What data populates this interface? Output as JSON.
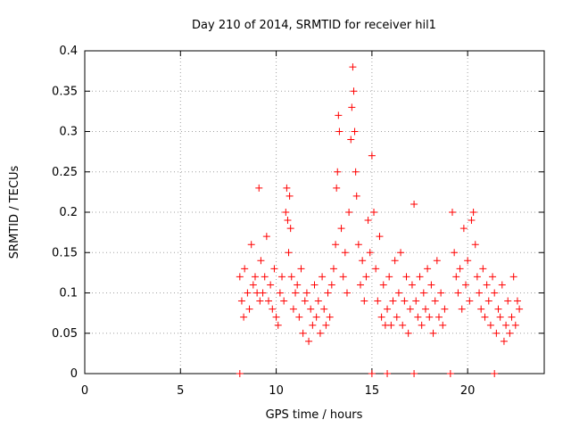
{
  "chart_data": {
    "type": "scatter",
    "title": "Day 210 of 2014, SRMTID for receiver hil1",
    "xlabel": "GPS time / hours",
    "ylabel": "SRMTID / TECUs",
    "xlim": [
      0,
      24
    ],
    "ylim": [
      0,
      0.4
    ],
    "x_ticks": [
      "0",
      "5",
      "10",
      "15",
      "20"
    ],
    "y_ticks": [
      "0",
      "0.05",
      "0.1",
      "0.15",
      "0.2",
      "0.25",
      "0.3",
      "0.35",
      "0.4"
    ],
    "grid": true,
    "marker": "+",
    "color": "#ff0000",
    "zero_points_x": [
      8.1,
      15.0,
      15.8,
      17.2,
      19.1,
      21.4
    ],
    "series": [
      {
        "x": [
          8.1,
          8.2,
          8.3,
          8.35,
          8.5,
          8.6,
          8.7,
          8.8,
          8.9,
          9.0,
          9.1,
          9.15,
          9.2,
          9.3,
          9.4,
          9.5,
          9.6,
          9.7,
          9.8,
          9.9,
          10.0,
          10.1,
          10.2,
          10.3,
          10.4,
          10.5,
          10.55,
          10.6,
          10.65,
          10.7,
          10.75,
          10.8,
          10.9,
          11.0,
          11.1,
          11.2,
          11.3,
          11.4,
          11.5,
          11.6,
          11.7,
          11.8,
          11.9,
          12.0,
          12.1,
          12.2,
          12.3,
          12.4,
          12.5,
          12.6,
          12.7,
          12.8,
          12.9,
          13.0,
          13.1,
          13.15,
          13.2,
          13.25,
          13.3,
          13.4,
          13.5,
          13.6,
          13.7,
          13.8,
          13.9,
          13.95,
          14.0,
          14.05,
          14.1,
          14.15,
          14.2,
          14.3,
          14.4,
          14.5,
          14.6,
          14.7,
          14.8,
          14.9,
          15.0,
          15.1,
          15.2,
          15.3,
          15.4,
          15.5,
          15.6,
          15.7,
          15.8,
          15.9,
          16.0,
          16.1,
          16.2,
          16.3,
          16.4,
          16.5,
          16.6,
          16.7,
          16.8,
          16.9,
          17.0,
          17.1,
          17.2,
          17.3,
          17.4,
          17.5,
          17.6,
          17.7,
          17.8,
          17.9,
          18.0,
          18.1,
          18.2,
          18.3,
          18.4,
          18.5,
          18.6,
          18.7,
          18.8,
          19.2,
          19.3,
          19.4,
          19.5,
          19.6,
          19.7,
          19.8,
          19.9,
          20.0,
          20.1,
          20.2,
          20.3,
          20.4,
          20.5,
          20.6,
          20.7,
          20.8,
          20.9,
          21.0,
          21.1,
          21.2,
          21.3,
          21.4,
          21.5,
          21.6,
          21.7,
          21.8,
          21.9,
          22.0,
          22.1,
          22.2,
          22.3,
          22.4,
          22.5,
          22.6,
          22.7
        ],
        "y": [
          0.12,
          0.09,
          0.07,
          0.13,
          0.1,
          0.08,
          0.16,
          0.11,
          0.12,
          0.1,
          0.23,
          0.09,
          0.14,
          0.1,
          0.12,
          0.17,
          0.09,
          0.11,
          0.08,
          0.13,
          0.07,
          0.06,
          0.1,
          0.12,
          0.09,
          0.2,
          0.23,
          0.19,
          0.15,
          0.22,
          0.18,
          0.12,
          0.08,
          0.1,
          0.11,
          0.07,
          0.13,
          0.05,
          0.09,
          0.1,
          0.04,
          0.08,
          0.06,
          0.11,
          0.07,
          0.09,
          0.05,
          0.12,
          0.08,
          0.06,
          0.1,
          0.07,
          0.11,
          0.13,
          0.16,
          0.23,
          0.25,
          0.32,
          0.3,
          0.18,
          0.12,
          0.15,
          0.1,
          0.2,
          0.29,
          0.33,
          0.38,
          0.35,
          0.3,
          0.25,
          0.22,
          0.16,
          0.11,
          0.14,
          0.09,
          0.12,
          0.19,
          0.15,
          0.27,
          0.2,
          0.13,
          0.09,
          0.17,
          0.07,
          0.11,
          0.06,
          0.08,
          0.12,
          0.06,
          0.09,
          0.14,
          0.07,
          0.1,
          0.15,
          0.06,
          0.09,
          0.12,
          0.05,
          0.08,
          0.11,
          0.21,
          0.09,
          0.07,
          0.12,
          0.06,
          0.1,
          0.08,
          0.13,
          0.07,
          0.11,
          0.05,
          0.09,
          0.14,
          0.07,
          0.1,
          0.06,
          0.08,
          0.2,
          0.15,
          0.12,
          0.1,
          0.13,
          0.08,
          0.18,
          0.11,
          0.14,
          0.09,
          0.19,
          0.2,
          0.16,
          0.12,
          0.1,
          0.08,
          0.13,
          0.07,
          0.11,
          0.09,
          0.06,
          0.12,
          0.1,
          0.05,
          0.08,
          0.07,
          0.11,
          0.04,
          0.06,
          0.09,
          0.05,
          0.07,
          0.12,
          0.06,
          0.09,
          0.08
        ]
      }
    ]
  }
}
